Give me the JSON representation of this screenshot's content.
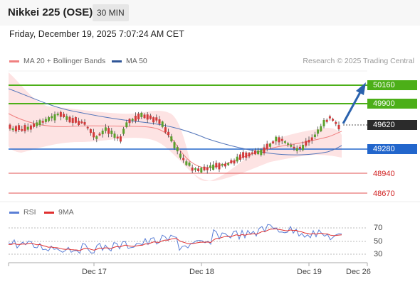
{
  "header": {
    "symbol": "Nikkei 225 (OSE)",
    "interval": "30 MIN"
  },
  "timestamp": "Friday, December 19, 2025 7:07:24 AM CET",
  "legend": {
    "ma20_label": "MA 20 + Bollinger Bands",
    "ma50_label": "MA 50",
    "rsi_label": "RSI",
    "ma9_label": "9MA",
    "credit": "Research © 2025 Trading Central"
  },
  "colors": {
    "resistance": "#4caf18",
    "support": "#2266cc",
    "target": "#d02020",
    "ma20": "#f08080",
    "ma50": "#5577bb",
    "bollinger_fill": "#fde3e3",
    "rsi": "#5b7fd6",
    "rsi_ma": "#e03030",
    "current": "#2b2b2b",
    "arrow": "#2a62ad"
  },
  "price_levels": [
    {
      "value": "50160",
      "kind": "resistance"
    },
    {
      "value": "49900",
      "kind": "resistance"
    },
    {
      "value": "49620",
      "kind": "current"
    },
    {
      "value": "49280",
      "kind": "support"
    },
    {
      "value": "48940",
      "kind": "target"
    },
    {
      "value": "48670",
      "kind": "target"
    }
  ],
  "rsi_ticks": [
    "70",
    "50",
    "30"
  ],
  "x_axis": [
    "Dec 17",
    "Dec 18",
    "Dec 19",
    "Dec 26"
  ]
}
